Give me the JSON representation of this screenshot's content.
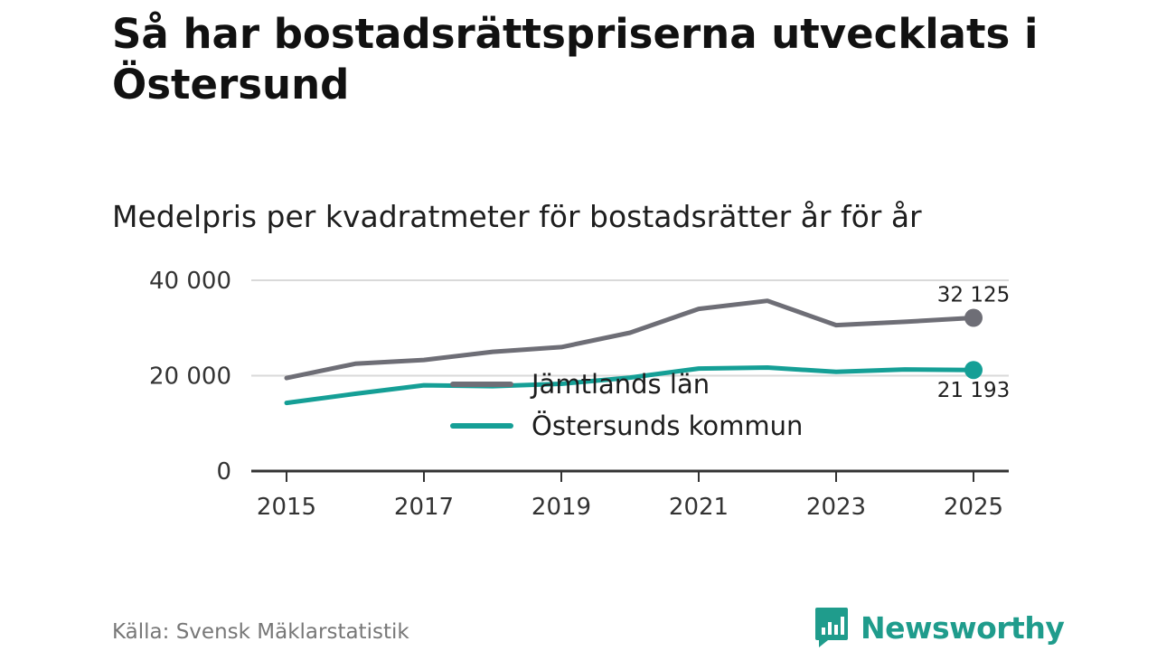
{
  "title": "Så har bostadsrättspriserna utvecklats i Östersund",
  "subtitle": "Medelpris per kvadratmeter för bostadsrätter år för år",
  "source": "Källa: Svensk Mäklarstatistik",
  "brand": "Newsworthy",
  "colors": {
    "jamtland": "#6e6e76",
    "ostersund": "#159f96",
    "highlight_fade": "#cfecea",
    "grid": "#d9d9d9",
    "axis": "#333333",
    "brand": "#1f9c8c"
  },
  "chart_data": {
    "type": "line",
    "title": "Medelpris per kvadratmeter för bostadsrätter år för år",
    "xlabel": "",
    "ylabel": "",
    "x": [
      2015,
      2016,
      2017,
      2018,
      2019,
      2020,
      2021,
      2022,
      2023,
      2024,
      2025
    ],
    "xticks": [
      "2015",
      "2017",
      "2019",
      "2021",
      "2023",
      "2025"
    ],
    "yticks": [
      "0",
      "20 000",
      "40 000"
    ],
    "ylim": [
      0,
      40000
    ],
    "grid": true,
    "legend_position": "center",
    "series": [
      {
        "name": "Jämtlands län",
        "values": [
          19500,
          22500,
          23300,
          25000,
          26000,
          29000,
          34000,
          35700,
          30600,
          31300,
          32125
        ],
        "end_label": "32 125"
      },
      {
        "name": "Östersunds kommun",
        "values": [
          14300,
          16200,
          18000,
          17800,
          18300,
          19600,
          21500,
          21700,
          20800,
          21300,
          21193
        ],
        "end_label": "21 193"
      }
    ]
  }
}
